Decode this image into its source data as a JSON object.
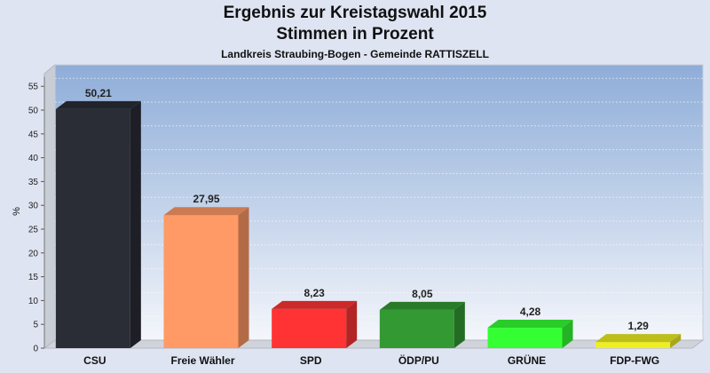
{
  "header": {
    "title": "Ergebnis zur Kreistagswahl 2015",
    "subtitle": "Stimmen in Prozent",
    "region": "Landkreis Straubing-Bogen - Gemeinde RATTISZELL"
  },
  "chart_data": {
    "type": "bar",
    "title": "Ergebnis zur Kreistagswahl 2015 Stimmen in Prozent",
    "subtitle": "Landkreis Straubing-Bogen - Gemeinde RATTISZELL",
    "xlabel": "",
    "ylabel": "%",
    "ylim": [
      0,
      57
    ],
    "yticks": [
      0,
      5,
      10,
      15,
      20,
      25,
      30,
      35,
      40,
      45,
      50,
      55
    ],
    "grid": true,
    "categories": [
      "CSU",
      "Freie Wähler",
      "SPD",
      "ÖDP/PU",
      "GRÜNE",
      "FDP-FWG"
    ],
    "values": [
      50.21,
      27.95,
      8.23,
      8.05,
      4.28,
      1.29
    ],
    "value_labels": [
      "50,21",
      "27,95",
      "8,23",
      "8,05",
      "4,28",
      "1,29"
    ],
    "colors": [
      "#2b2d36",
      "#ff9966",
      "#ff3333",
      "#339933",
      "#33ff33",
      "#eeee22"
    ]
  }
}
